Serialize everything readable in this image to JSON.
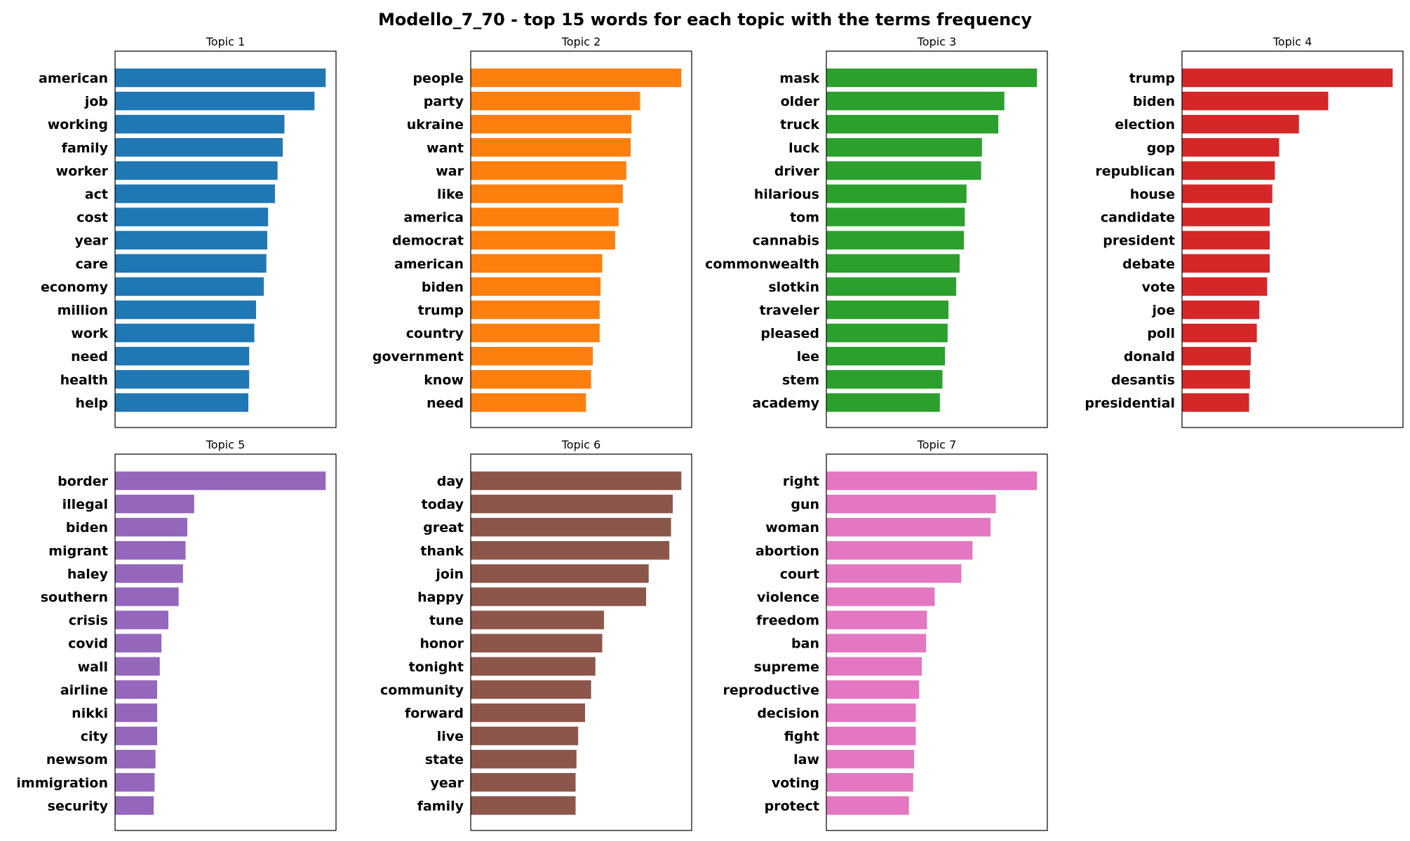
{
  "figure": {
    "title": "Modello_7_70 - top 15 words for each topic with the terms frequency"
  },
  "chart_data": [
    {
      "type": "bar",
      "orientation": "horizontal",
      "title": "Topic 1",
      "color": "#1f77b4",
      "categories": [
        "american",
        "job",
        "working",
        "family",
        "worker",
        "act",
        "cost",
        "year",
        "care",
        "economy",
        "million",
        "work",
        "need",
        "health",
        "help"
      ],
      "values": [
        0.0245,
        0.0232,
        0.0197,
        0.0195,
        0.0189,
        0.0186,
        0.0178,
        0.0177,
        0.0176,
        0.0173,
        0.0164,
        0.0162,
        0.0156,
        0.0156,
        0.0155
      ],
      "xlim": [
        0,
        0.0257
      ]
    },
    {
      "type": "bar",
      "orientation": "horizontal",
      "title": "Topic 2",
      "color": "#ff7f0e",
      "categories": [
        "people",
        "party",
        "ukraine",
        "want",
        "war",
        "like",
        "america",
        "democrat",
        "american",
        "biden",
        "trump",
        "country",
        "government",
        "know",
        "need"
      ],
      "values": [
        0.0245,
        0.0197,
        0.0187,
        0.0186,
        0.0181,
        0.0177,
        0.0172,
        0.0168,
        0.0153,
        0.0151,
        0.015,
        0.015,
        0.0142,
        0.014,
        0.0134
      ],
      "xlim": [
        0,
        0.0257
      ]
    },
    {
      "type": "bar",
      "orientation": "horizontal",
      "title": "Topic 3",
      "color": "#2ca02c",
      "categories": [
        "mask",
        "older",
        "truck",
        "luck",
        "driver",
        "hilarious",
        "tom",
        "cannabis",
        "commonwealth",
        "slotkin",
        "traveler",
        "pleased",
        "lee",
        "stem",
        "academy"
      ],
      "values": [
        0.0245,
        0.0207,
        0.02,
        0.0181,
        0.018,
        0.0163,
        0.0161,
        0.016,
        0.0155,
        0.0151,
        0.0142,
        0.0141,
        0.0138,
        0.0135,
        0.0132
      ],
      "xlim": [
        0,
        0.0257
      ]
    },
    {
      "type": "bar",
      "orientation": "horizontal",
      "title": "Topic 4",
      "color": "#d62728",
      "categories": [
        "trump",
        "biden",
        "election",
        "gop",
        "republican",
        "house",
        "candidate",
        "president",
        "debate",
        "vote",
        "joe",
        "poll",
        "donald",
        "desantis",
        "presidential"
      ],
      "values": [
        0.0245,
        0.017,
        0.0136,
        0.0113,
        0.0108,
        0.0105,
        0.0102,
        0.0102,
        0.0102,
        0.0099,
        0.009,
        0.0087,
        0.008,
        0.0079,
        0.0078
      ],
      "xlim": [
        0,
        0.0257
      ]
    },
    {
      "type": "bar",
      "orientation": "horizontal",
      "title": "Topic 5",
      "color": "#9467bd",
      "categories": [
        "border",
        "illegal",
        "biden",
        "migrant",
        "haley",
        "southern",
        "crisis",
        "covid",
        "wall",
        "airline",
        "nikki",
        "city",
        "newsom",
        "immigration",
        "security"
      ],
      "values": [
        0.0245,
        0.0092,
        0.0084,
        0.0082,
        0.0079,
        0.0074,
        0.0062,
        0.0054,
        0.0052,
        0.0049,
        0.0049,
        0.0049,
        0.0047,
        0.0046,
        0.0045
      ],
      "xlim": [
        0,
        0.0257
      ]
    },
    {
      "type": "bar",
      "orientation": "horizontal",
      "title": "Topic 6",
      "color": "#8c564b",
      "categories": [
        "day",
        "today",
        "great",
        "thank",
        "join",
        "happy",
        "tune",
        "honor",
        "tonight",
        "community",
        "forward",
        "live",
        "state",
        "year",
        "family"
      ],
      "values": [
        0.0245,
        0.0235,
        0.0233,
        0.0231,
        0.0207,
        0.0204,
        0.0155,
        0.0153,
        0.0145,
        0.014,
        0.0133,
        0.0125,
        0.0123,
        0.0122,
        0.0122
      ],
      "xlim": [
        0,
        0.0257
      ]
    },
    {
      "type": "bar",
      "orientation": "horizontal",
      "title": "Topic 7",
      "color": "#e377c2",
      "categories": [
        "right",
        "gun",
        "woman",
        "abortion",
        "court",
        "violence",
        "freedom",
        "ban",
        "supreme",
        "reproductive",
        "decision",
        "fight",
        "law",
        "voting",
        "protect"
      ],
      "values": [
        0.0245,
        0.0197,
        0.0191,
        0.017,
        0.0157,
        0.0126,
        0.0117,
        0.0116,
        0.0111,
        0.0108,
        0.0104,
        0.0104,
        0.0102,
        0.0101,
        0.0096
      ],
      "xlim": [
        0,
        0.0257
      ]
    }
  ]
}
